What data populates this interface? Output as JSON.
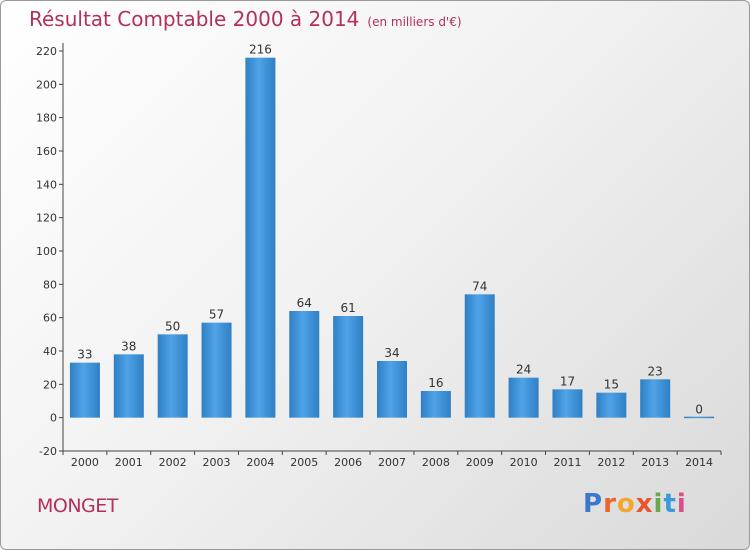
{
  "title": "Résultat Comptable 2000 à 2014",
  "unit": "(en milliers d'€)",
  "place": "MONGET",
  "logo": "Proxiti",
  "chart_data": {
    "type": "bar",
    "title": "Résultat Comptable 2000 à 2014",
    "subtitle": "(en milliers d'€)",
    "xlabel": "",
    "ylabel": "",
    "categories": [
      "2000",
      "2001",
      "2002",
      "2003",
      "2004",
      "2005",
      "2006",
      "2007",
      "2008",
      "2009",
      "2010",
      "2011",
      "2012",
      "2013",
      "2014"
    ],
    "values": [
      33,
      38,
      50,
      57,
      216,
      64,
      61,
      34,
      16,
      74,
      24,
      17,
      15,
      23,
      0
    ],
    "ylim": [
      -20,
      220
    ],
    "yticks": [
      -20,
      0,
      20,
      40,
      60,
      80,
      100,
      120,
      140,
      160,
      180,
      200,
      220
    ],
    "grid": false,
    "colors": {
      "bar": "#4a9ee0",
      "bar_dark": "#2f7fc4",
      "title": "#b3305a"
    }
  }
}
